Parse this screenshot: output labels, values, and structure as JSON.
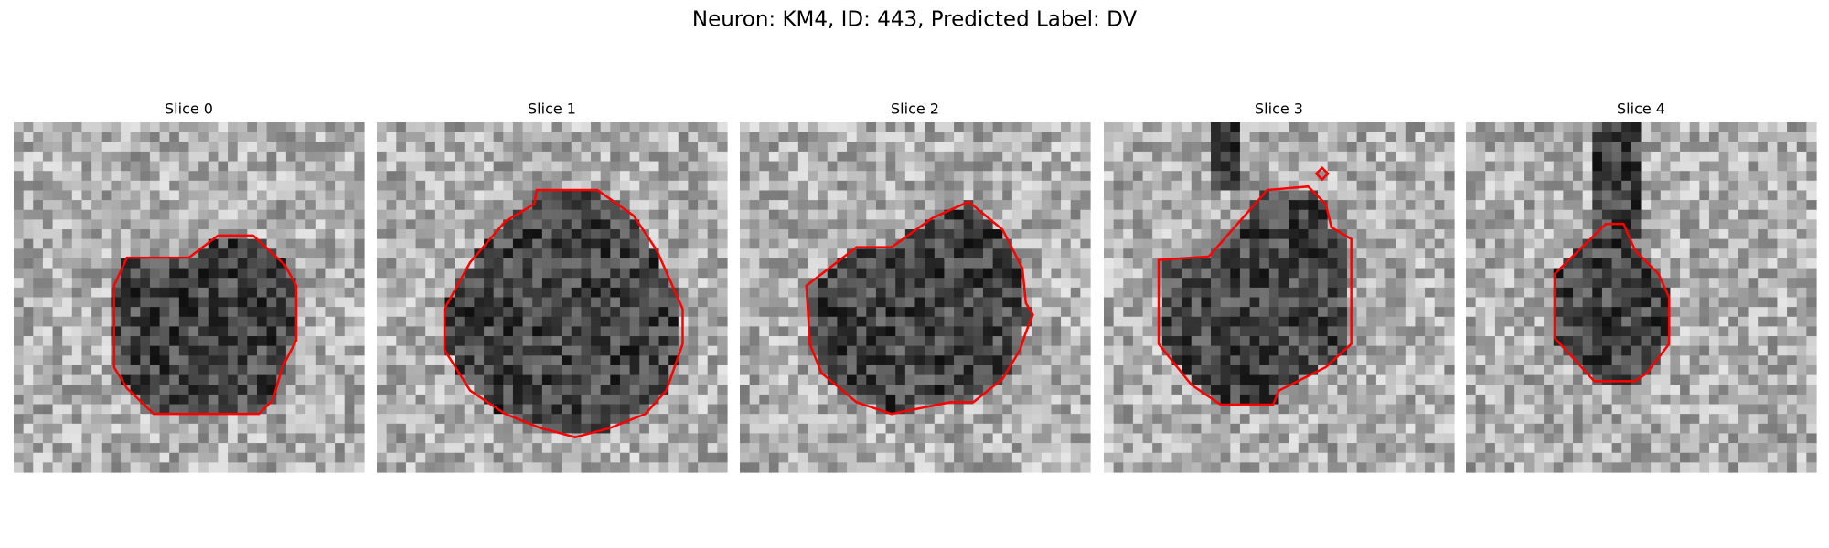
{
  "figure": {
    "title": "Neuron: KM4, ID: 443, Predicted Label: DV",
    "panels": [
      {
        "title": "Slice 0"
      },
      {
        "title": "Slice 1"
      },
      {
        "title": "Slice 2"
      },
      {
        "title": "Slice 3"
      },
      {
        "title": "Slice 4"
      }
    ]
  }
}
